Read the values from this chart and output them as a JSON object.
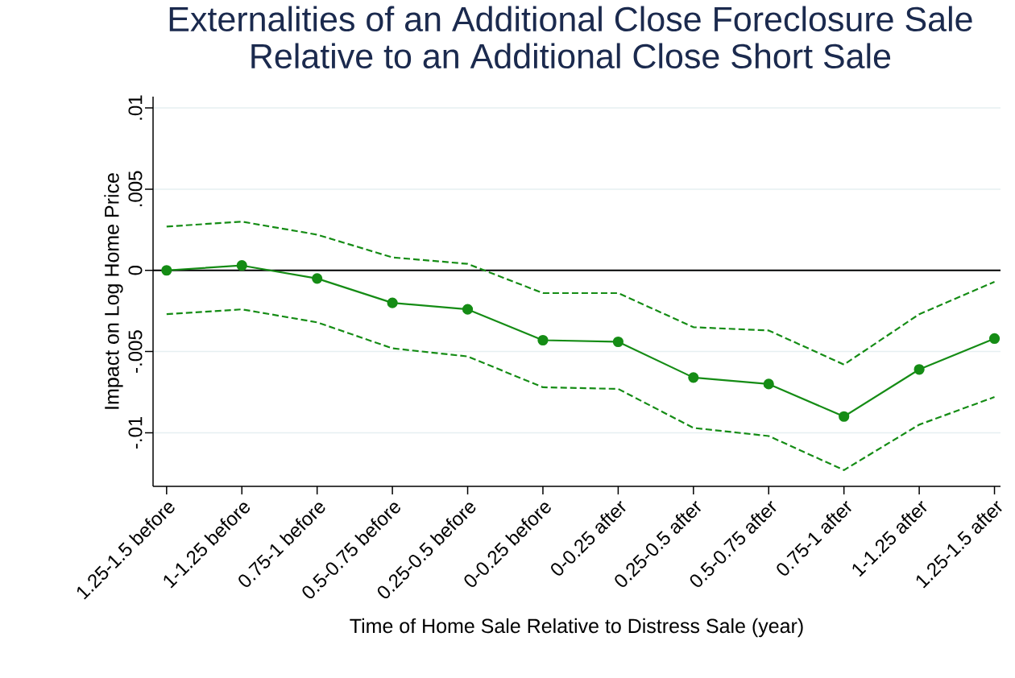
{
  "chart_data": {
    "type": "line",
    "title": "Externalities of an Additional Close Foreclosure Sale Relative to an Additional Close Short Sale",
    "xlabel": "Time of Home Sale Relative to Distress Sale (year)",
    "ylabel": "Impact on Log Home Price",
    "categories": [
      "1.25-1.5 before",
      "1-1.25 before",
      "0.75-1 before",
      "0.5-0.75 before",
      "0.25-0.5 before",
      "0-0.25 before",
      "0-0.25 after",
      "0.25-0.5 after",
      "0.5-0.75 after",
      "0.75-1 after",
      "1-1.25 after",
      "1.25-1.5 after"
    ],
    "series": [
      {
        "color": "#158c15",
        "marker": "circle",
        "line_style": "solid",
        "values": [
          0.0,
          0.0003,
          -0.0005,
          -0.002,
          -0.0024,
          -0.0043,
          -0.0044,
          -0.0066,
          -0.007,
          -0.009,
          -0.0061,
          -0.0042
        ]
      },
      {
        "color": "#158c15",
        "marker": "none",
        "line_style": "dashed",
        "values": [
          0.0027,
          0.003,
          0.0022,
          0.0008,
          0.0004,
          -0.0014,
          -0.0014,
          -0.0035,
          -0.0037,
          -0.0058,
          -0.0027,
          -0.0007
        ]
      },
      {
        "color": "#158c15",
        "marker": "none",
        "line_style": "dashed",
        "values": [
          -0.0027,
          -0.0024,
          -0.0032,
          -0.0048,
          -0.0053,
          -0.0072,
          -0.0073,
          -0.0097,
          -0.0102,
          -0.0123,
          -0.0095,
          -0.0078
        ]
      }
    ],
    "ylim": [
      -0.0133,
      0.0107
    ],
    "yticks": [
      {
        "value": -0.01,
        "label": "-.01"
      },
      {
        "value": -0.005,
        "label": "-.005"
      },
      {
        "value": 0,
        "label": "0"
      },
      {
        "value": 0.005,
        "label": ".005"
      },
      {
        "value": 0.01,
        "label": ".01"
      }
    ],
    "grid": "y",
    "ref_lines": [
      {
        "axis": "y",
        "value": 0,
        "color": "#000000"
      }
    ]
  }
}
